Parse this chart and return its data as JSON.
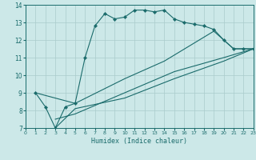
{
  "title": "",
  "xlabel": "Humidex (Indice chaleur)",
  "xlim": [
    0,
    23
  ],
  "ylim": [
    7,
    14
  ],
  "yticks": [
    7,
    8,
    9,
    10,
    11,
    12,
    13,
    14
  ],
  "xticks": [
    0,
    1,
    2,
    3,
    4,
    5,
    6,
    7,
    8,
    9,
    10,
    11,
    12,
    13,
    14,
    15,
    16,
    17,
    18,
    19,
    20,
    21,
    22,
    23
  ],
  "bg_color": "#cce8e8",
  "line_color": "#1a6b6b",
  "grid_color": "#aacccc",
  "line1_x": [
    1,
    2,
    3,
    4,
    5,
    6,
    7,
    8,
    9,
    10,
    11,
    12,
    13,
    14,
    15,
    16,
    17,
    18,
    19,
    20,
    21,
    22,
    23
  ],
  "line1_y": [
    9.0,
    8.2,
    7.0,
    8.2,
    8.4,
    11.0,
    12.8,
    13.5,
    13.2,
    13.3,
    13.7,
    13.7,
    13.6,
    13.7,
    13.2,
    13.0,
    12.9,
    12.8,
    12.6,
    12.0,
    11.5,
    11.5,
    11.5
  ],
  "line2_x": [
    1,
    5,
    10,
    14,
    19,
    21,
    22,
    23
  ],
  "line2_y": [
    9.0,
    8.4,
    9.8,
    10.8,
    12.5,
    11.5,
    11.5,
    11.5
  ],
  "line3_x": [
    3,
    5,
    10,
    15,
    20,
    23
  ],
  "line3_y": [
    7.5,
    7.8,
    9.0,
    10.2,
    11.0,
    11.5
  ],
  "line4_x": [
    3,
    5,
    10,
    15,
    20,
    23
  ],
  "line4_y": [
    7.0,
    8.1,
    8.7,
    9.8,
    10.8,
    11.5
  ]
}
